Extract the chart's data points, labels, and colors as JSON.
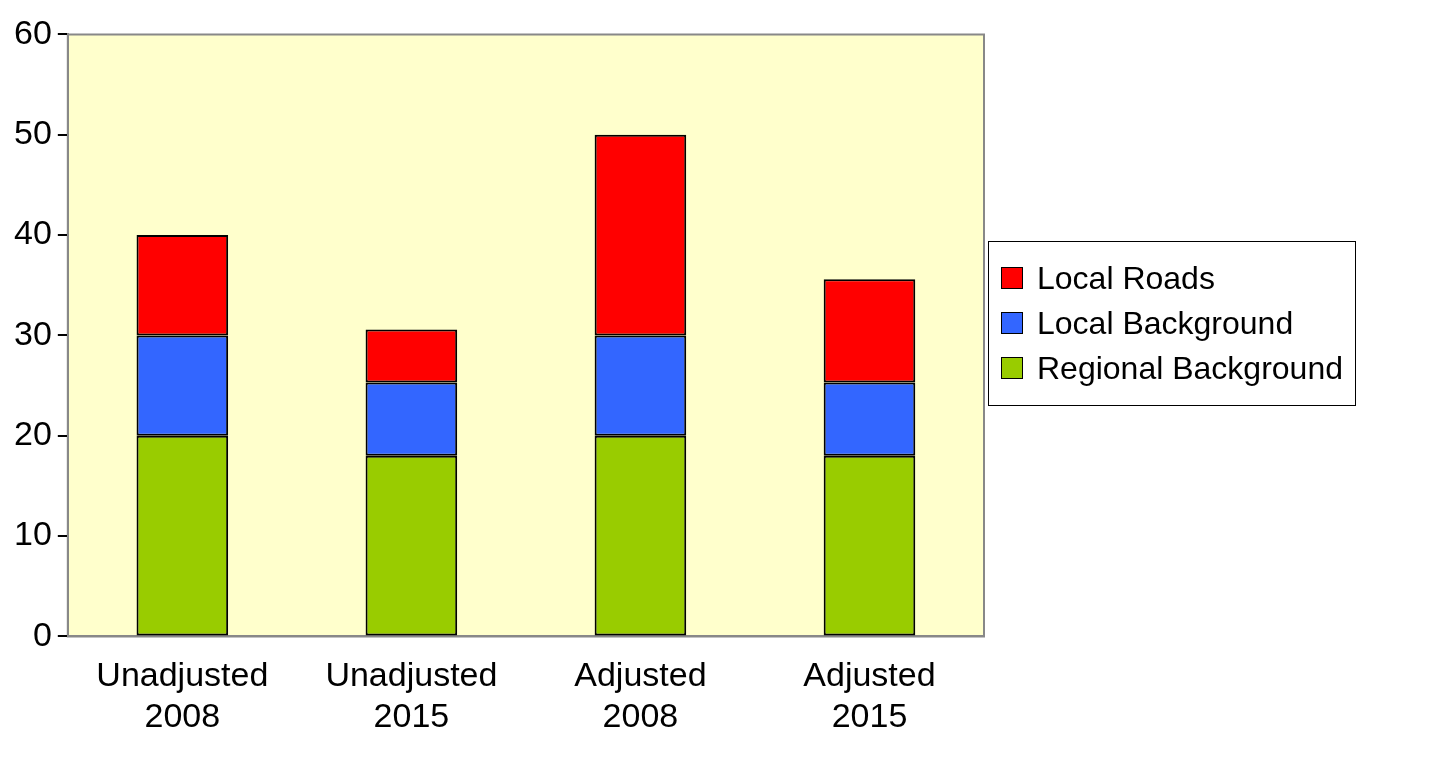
{
  "chart_data": {
    "type": "bar",
    "stacked": true,
    "categories": [
      "Unadjusted 2008",
      "Unadjusted 2015",
      "Adjusted 2008",
      "Adjusted 2015"
    ],
    "series": [
      {
        "name": "Regional Background",
        "color": "#99cc00",
        "values": [
          20,
          18,
          20,
          18
        ]
      },
      {
        "name": "Local Background",
        "color": "#3366ff",
        "values": [
          10,
          7.3,
          10,
          7.3
        ]
      },
      {
        "name": "Local Roads",
        "color": "#ff0000",
        "values": [
          10,
          5.3,
          20,
          10.3
        ]
      }
    ],
    "ylim": [
      0,
      60
    ],
    "yticks": [
      0,
      10,
      20,
      30,
      40,
      50,
      60
    ],
    "grid": false,
    "legend": "right"
  }
}
